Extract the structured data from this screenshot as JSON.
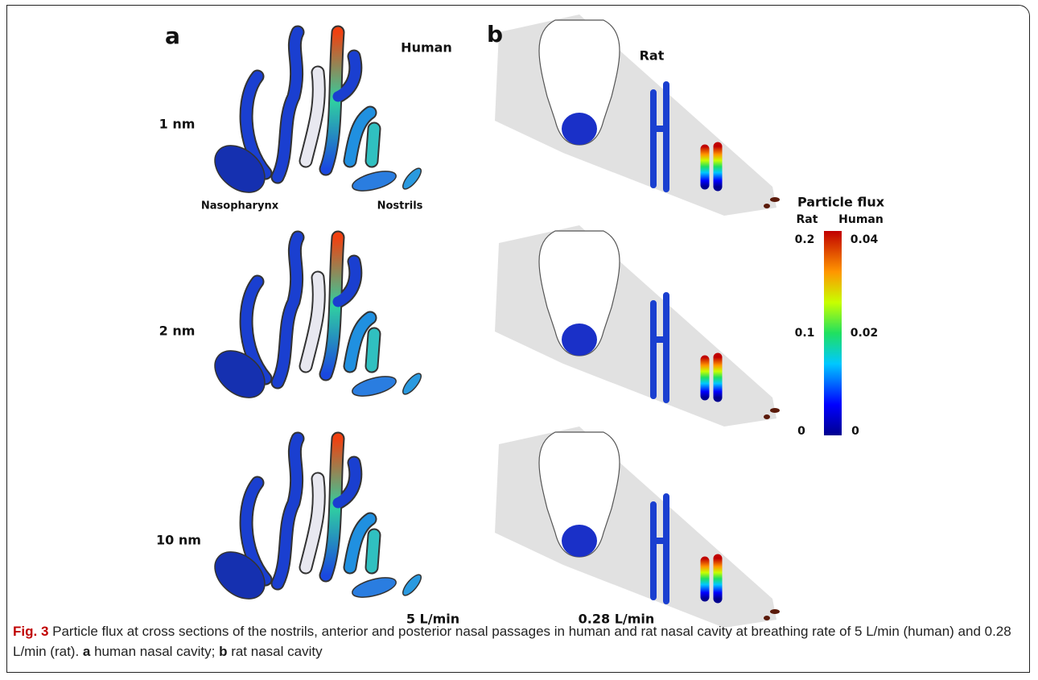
{
  "panel_a": {
    "label": "a",
    "title": "Human",
    "rows": [
      "1 nm",
      "2 nm",
      "10 nm"
    ],
    "annotations": [
      "Nasopharynx",
      "Nostrils"
    ],
    "flow_rate": "5 L/min"
  },
  "panel_b": {
    "label": "b",
    "title": "Rat",
    "flow_rate": "0.28 L/min"
  },
  "colorbar": {
    "title": "Particle flux",
    "columns": [
      "Rat",
      "Human"
    ],
    "rat_ticks": [
      "0.2",
      "0.1",
      "0"
    ],
    "human_ticks": [
      "0.04",
      "0.02",
      "0"
    ]
  },
  "caption": {
    "label": "Fig. 3",
    "text": " Particle flux at cross sections of the nostrils, anterior and posterior nasal passages in human and rat nasal cavity at breathing rate of 5 L/min (human) and 0.28 L/min (rat). ",
    "panel_a_label": "a",
    "panel_a_text": " human nasal cavity; ",
    "panel_b_label": "b",
    "panel_b_text": " rat nasal cavity"
  }
}
